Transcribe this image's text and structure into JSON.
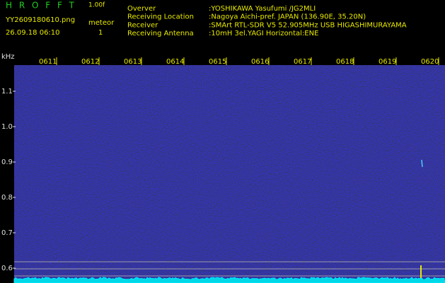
{
  "header": {
    "program": "H R O F F T",
    "version": "1.00f",
    "filename": "YY2609180610.png",
    "timestamp": "26.09.18 06:10",
    "count_label": "meteor",
    "count": 1,
    "fields": [
      {
        "label": "Overver",
        "value": ":YOSHIKAWA Yasufumi /JG2MLI"
      },
      {
        "label": "Receiving Location",
        "value": ":Nagoya Aichi-pref. JAPAN (136.90E, 35.20N)"
      },
      {
        "label": "Receiver",
        "value": ":SMArt RTL-SDR V5 52.905MHz USB HIGASHIMURAYAMA"
      },
      {
        "label": "Receiving Antenna",
        "value": ":10mH 3el.YAGI Horizontal:ENE"
      }
    ]
  },
  "spectrogram": {
    "y_unit": "kHz",
    "times": [
      "0611",
      "0612",
      "0613",
      "0614",
      "0615",
      "0616",
      "0617",
      "0618",
      "0619",
      "0620"
    ],
    "ylim": [
      0.57,
      1.17
    ],
    "yticks": [
      1.1,
      {
        "value": 1,
        "label": "1.0"
      },
      0.9,
      0.8,
      0.7,
      0.6
    ]
  }
}
